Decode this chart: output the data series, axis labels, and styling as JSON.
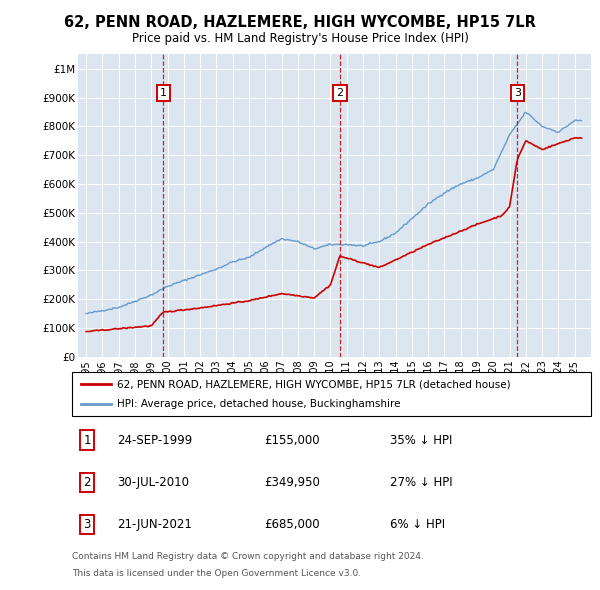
{
  "title": "62, PENN ROAD, HAZLEMERE, HIGH WYCOMBE, HP15 7LR",
  "subtitle": "Price paid vs. HM Land Registry's House Price Index (HPI)",
  "legend_line1": "62, PENN ROAD, HAZLEMERE, HIGH WYCOMBE, HP15 7LR (detached house)",
  "legend_line2": "HPI: Average price, detached house, Buckinghamshire",
  "footer1": "Contains HM Land Registry data © Crown copyright and database right 2024.",
  "footer2": "This data is licensed under the Open Government Licence v3.0.",
  "sale_color": "#cc0000",
  "hpi_color": "#6699cc",
  "plot_bg_color": "#dce6f1",
  "sales": [
    {
      "num": 1,
      "date_str": "24-SEP-1999",
      "price": 155000,
      "price_str": "£155,000",
      "pct": "35%",
      "x": 1999.73
    },
    {
      "num": 2,
      "date_str": "30-JUL-2010",
      "price": 349950,
      "price_str": "£349,950",
      "pct": "27%",
      "x": 2010.58
    },
    {
      "num": 3,
      "date_str": "21-JUN-2021",
      "price": 685000,
      "price_str": "£685,000",
      "pct": "6%",
      "x": 2021.47
    }
  ],
  "ylim": [
    0,
    1050000
  ],
  "xlim": [
    1994.5,
    2026.0
  ],
  "yticks": [
    0,
    100000,
    200000,
    300000,
    400000,
    500000,
    600000,
    700000,
    800000,
    900000,
    1000000
  ],
  "ytick_labels": [
    "£0",
    "£100K",
    "£200K",
    "£300K",
    "£400K",
    "£500K",
    "£600K",
    "£700K",
    "£800K",
    "£900K",
    "£1M"
  ],
  "xticks": [
    1995,
    1996,
    1997,
    1998,
    1999,
    2000,
    2001,
    2002,
    2003,
    2004,
    2005,
    2006,
    2007,
    2008,
    2009,
    2010,
    2011,
    2012,
    2013,
    2014,
    2015,
    2016,
    2017,
    2018,
    2019,
    2020,
    2021,
    2022,
    2023,
    2024,
    2025
  ]
}
